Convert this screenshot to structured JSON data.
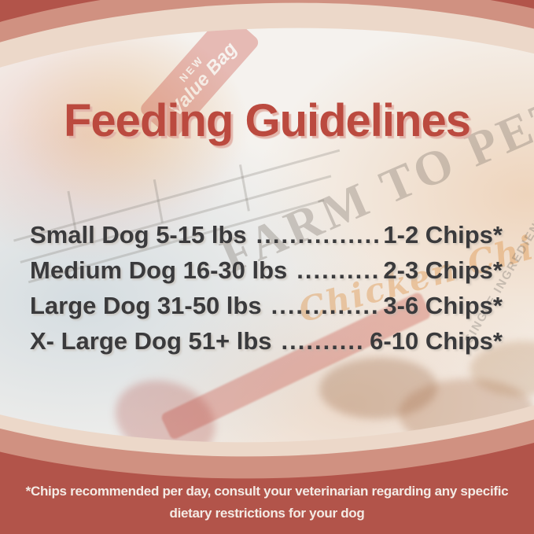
{
  "poster": {
    "title": "Feeding Guidelines",
    "rows": [
      {
        "label": "Small Dog 5-15 lbs",
        "dots": "..........................",
        "value": "1-2 Chips*"
      },
      {
        "label": "Medium Dog 16-30 lbs",
        "dots": "..........................",
        "value": "2-3 Chips*"
      },
      {
        "label": "Large Dog 31-50 lbs",
        "dots": "..........................",
        "value": "3-6 Chips*"
      },
      {
        "label": "X- Large Dog 51+ lbs",
        "dots": "..........................",
        "value": "6-10 Chips*"
      }
    ],
    "footnote": {
      "line1": "*Chips recommended per day, consult your veterinarian regarding any specific",
      "line2": "dietary restrictions for your dog"
    },
    "background_photo": {
      "ribbon_new": "NEW",
      "ribbon_value_bag": "Value Bag",
      "brand_watermark": "FARM TO PET",
      "product_watermark": "Chicken Chips",
      "fine_print_watermark": "SINGLE INGREDIENT"
    },
    "colors": {
      "outer_red": "#b2544a",
      "salmon_band": "#d09181",
      "cream_band": "#ecd8c9",
      "photo_base": "#f5f2ee",
      "title_red": "#bb4a3f",
      "row_text": "#3a3a3c",
      "footnote_text": "#f4ebe5"
    }
  }
}
